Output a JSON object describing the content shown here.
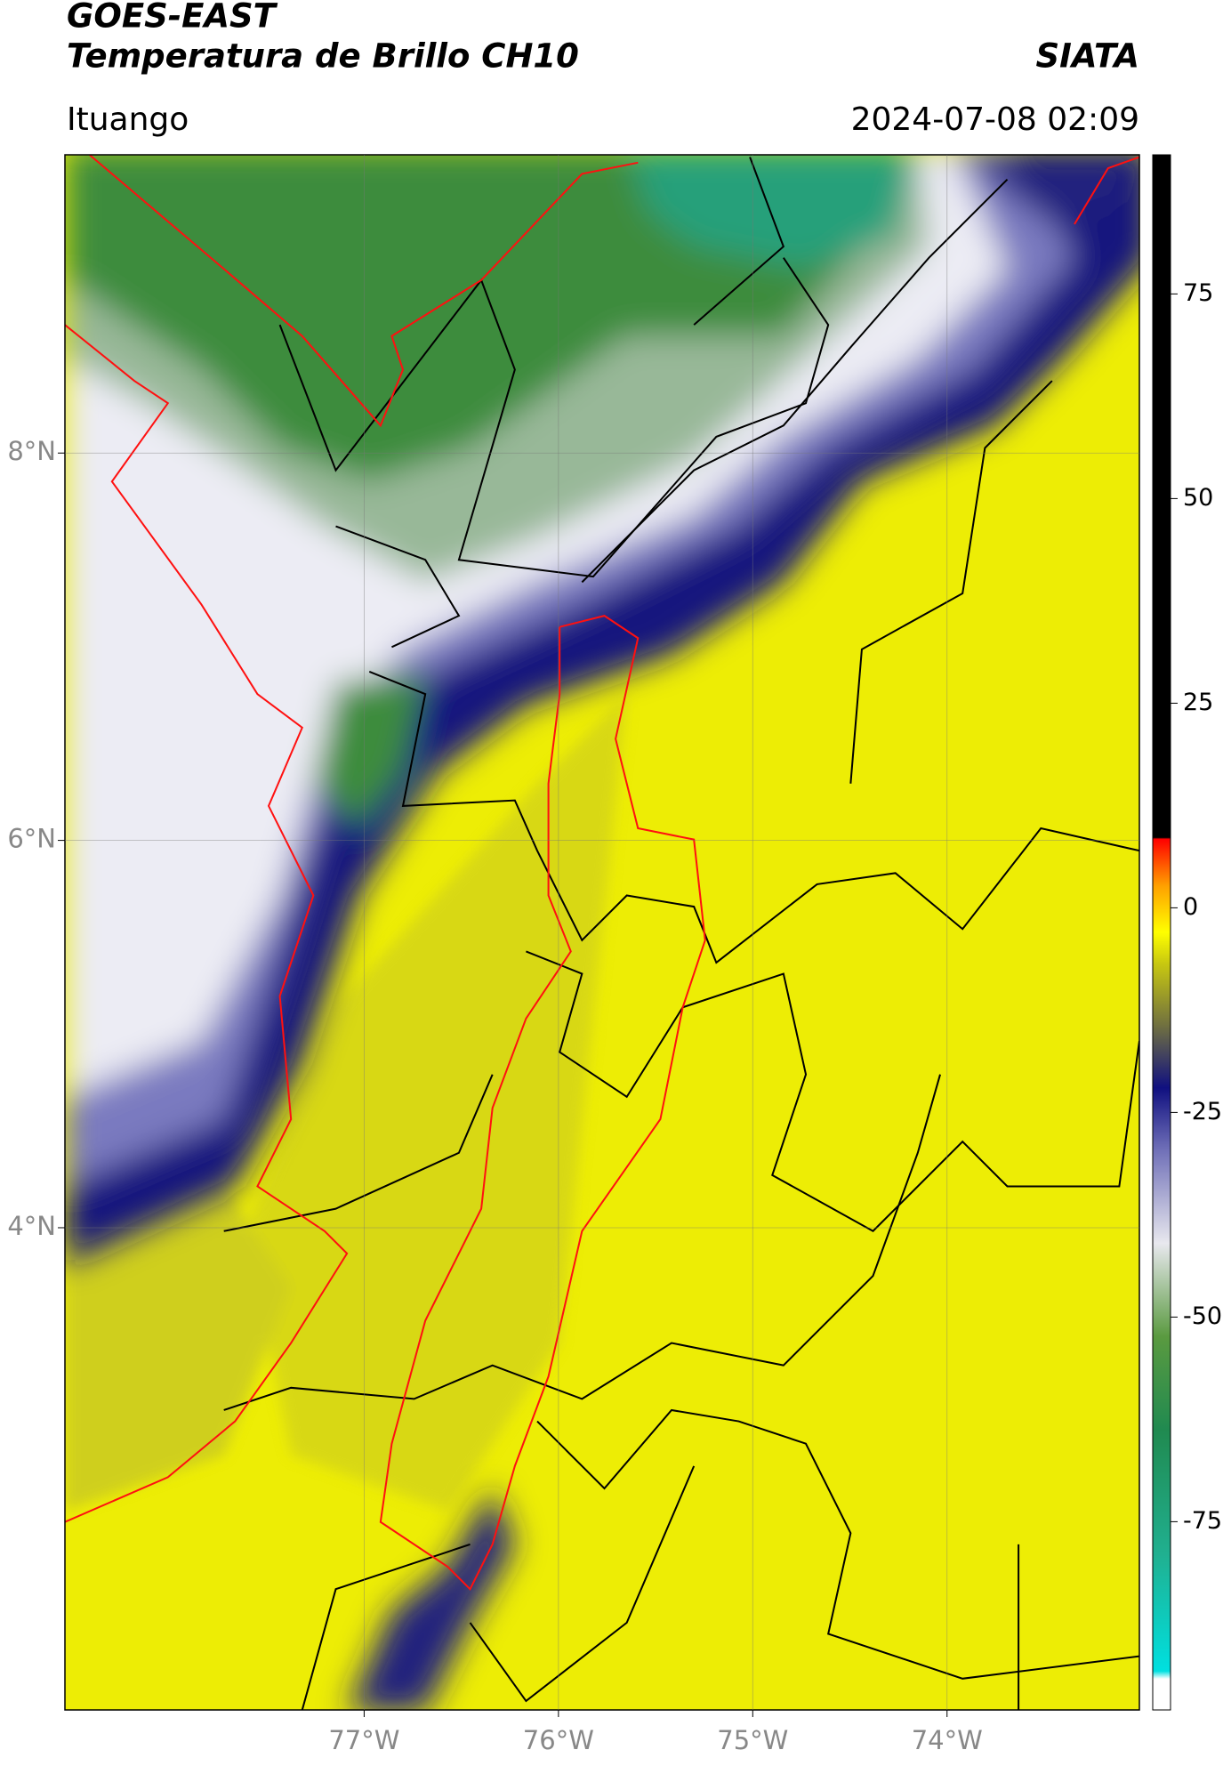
{
  "header": {
    "title": "GOES-EAST",
    "subtitle": "Temperatura de Brillo CH10",
    "brand": "SIATA",
    "location": "Ituango",
    "timestamp": "2024-07-08 02:09"
  },
  "map": {
    "lonlim": [
      -78.54,
      -73.01
    ],
    "latlim": [
      1.51,
      9.54
    ],
    "lonticks": [
      {
        "value": -77,
        "label": "77°W"
      },
      {
        "value": -76,
        "label": "76°W"
      },
      {
        "value": -75,
        "label": "75°W"
      },
      {
        "value": -74,
        "label": "74°W"
      }
    ],
    "latticks": [
      {
        "value": 8,
        "label": "8°N"
      },
      {
        "value": 6,
        "label": "6°N"
      },
      {
        "value": 4,
        "label": "4°N"
      }
    ],
    "grid": true
  },
  "colorbar": {
    "lim": [
      -98,
      92
    ],
    "ticks": [
      75,
      50,
      25,
      0,
      -25,
      -50,
      -75
    ]
  }
}
